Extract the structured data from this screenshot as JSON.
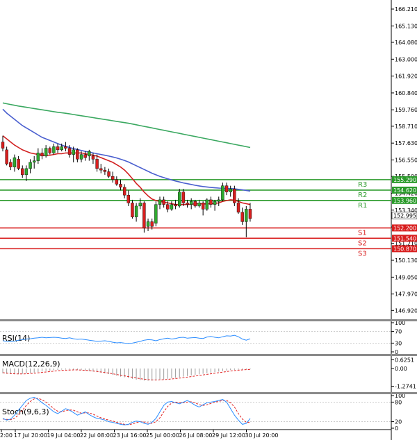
{
  "chart_data": {
    "type": "candlestick",
    "main": {
      "ylim": [
        146.4,
        166.7
      ],
      "price_ticks": [
        "166.210",
        "165.130",
        "164.080",
        "163.000",
        "161.920",
        "160.840",
        "159.760",
        "158.710",
        "157.630",
        "156.550",
        "155.500",
        "154.420",
        "153.340",
        "152.260",
        "151.210",
        "150.130",
        "149.050",
        "147.970",
        "146.920"
      ],
      "x_labels": [
        "2:00",
        "17 Jul 20:00",
        "19 Jul 04:00",
        "22 Jul 08:00",
        "23 Jul 16:00",
        "25 Jul 00:00",
        "26 Jul 08:00",
        "29 Jul 12:00",
        "30 Jul 20:00"
      ],
      "candles": [
        {
          "o": 157.7,
          "h": 158.1,
          "l": 157.1,
          "c": 157.3
        },
        {
          "o": 157.2,
          "h": 157.4,
          "l": 156.2,
          "c": 156.3
        },
        {
          "o": 156.4,
          "h": 156.6,
          "l": 155.9,
          "c": 156.1
        },
        {
          "o": 156.1,
          "h": 156.9,
          "l": 155.8,
          "c": 156.7
        },
        {
          "o": 156.6,
          "h": 156.8,
          "l": 155.9,
          "c": 156.0
        },
        {
          "o": 156.0,
          "h": 156.2,
          "l": 155.4,
          "c": 155.6
        },
        {
          "o": 155.6,
          "h": 156.2,
          "l": 155.2,
          "c": 156.0
        },
        {
          "o": 156.0,
          "h": 156.6,
          "l": 155.7,
          "c": 156.4
        },
        {
          "o": 156.4,
          "h": 156.8,
          "l": 156.0,
          "c": 156.5
        },
        {
          "o": 156.5,
          "h": 157.3,
          "l": 156.3,
          "c": 157.0
        },
        {
          "o": 157.0,
          "h": 157.3,
          "l": 156.6,
          "c": 156.8
        },
        {
          "o": 156.8,
          "h": 157.5,
          "l": 156.7,
          "c": 157.3
        },
        {
          "o": 157.3,
          "h": 157.4,
          "l": 156.9,
          "c": 157.0
        },
        {
          "o": 157.0,
          "h": 157.6,
          "l": 156.9,
          "c": 157.4
        },
        {
          "o": 157.4,
          "h": 157.6,
          "l": 157.0,
          "c": 157.2
        },
        {
          "o": 157.2,
          "h": 157.6,
          "l": 157.1,
          "c": 157.4
        },
        {
          "o": 157.4,
          "h": 157.7,
          "l": 157.1,
          "c": 157.3
        },
        {
          "o": 157.3,
          "h": 157.5,
          "l": 156.7,
          "c": 156.9
        },
        {
          "o": 156.9,
          "h": 157.4,
          "l": 156.4,
          "c": 157.2
        },
        {
          "o": 157.2,
          "h": 157.3,
          "l": 156.4,
          "c": 156.6
        },
        {
          "o": 156.6,
          "h": 157.1,
          "l": 156.4,
          "c": 156.9
        },
        {
          "o": 156.9,
          "h": 157.1,
          "l": 156.5,
          "c": 156.7
        },
        {
          "o": 156.8,
          "h": 157.2,
          "l": 156.5,
          "c": 157.1
        },
        {
          "o": 156.8,
          "h": 157.0,
          "l": 156.3,
          "c": 156.6
        },
        {
          "o": 156.6,
          "h": 156.9,
          "l": 155.8,
          "c": 156.0
        },
        {
          "o": 156.0,
          "h": 156.3,
          "l": 155.7,
          "c": 155.9
        },
        {
          "o": 155.9,
          "h": 156.1,
          "l": 155.6,
          "c": 155.8
        },
        {
          "o": 155.8,
          "h": 156.0,
          "l": 155.4,
          "c": 155.5
        },
        {
          "o": 155.5,
          "h": 155.8,
          "l": 155.1,
          "c": 155.3
        },
        {
          "o": 155.3,
          "h": 155.5,
          "l": 154.9,
          "c": 155.0
        },
        {
          "o": 155.0,
          "h": 155.3,
          "l": 154.6,
          "c": 154.8
        },
        {
          "o": 154.8,
          "h": 155.0,
          "l": 154.1,
          "c": 154.3
        },
        {
          "o": 154.3,
          "h": 154.6,
          "l": 153.6,
          "c": 153.8
        },
        {
          "o": 153.8,
          "h": 154.0,
          "l": 152.8,
          "c": 152.9
        },
        {
          "o": 152.9,
          "h": 153.8,
          "l": 152.6,
          "c": 153.6
        },
        {
          "o": 153.6,
          "h": 154.1,
          "l": 153.4,
          "c": 153.8
        },
        {
          "o": 153.8,
          "h": 153.9,
          "l": 151.9,
          "c": 152.2
        },
        {
          "o": 152.3,
          "h": 152.8,
          "l": 152.0,
          "c": 152.6
        },
        {
          "o": 152.6,
          "h": 152.8,
          "l": 152.1,
          "c": 152.3
        },
        {
          "o": 152.5,
          "h": 153.9,
          "l": 152.3,
          "c": 153.7
        },
        {
          "o": 153.7,
          "h": 154.2,
          "l": 153.4,
          "c": 154.0
        },
        {
          "o": 154.0,
          "h": 154.2,
          "l": 153.5,
          "c": 153.7
        },
        {
          "o": 153.7,
          "h": 153.9,
          "l": 153.2,
          "c": 153.4
        },
        {
          "o": 153.4,
          "h": 153.9,
          "l": 153.3,
          "c": 153.7
        },
        {
          "o": 153.7,
          "h": 154.0,
          "l": 153.4,
          "c": 153.6
        },
        {
          "o": 153.6,
          "h": 154.7,
          "l": 153.5,
          "c": 154.5
        },
        {
          "o": 154.5,
          "h": 154.7,
          "l": 153.6,
          "c": 153.8
        },
        {
          "o": 153.8,
          "h": 154.0,
          "l": 153.5,
          "c": 153.7
        },
        {
          "o": 153.7,
          "h": 154.1,
          "l": 153.4,
          "c": 153.9
        },
        {
          "o": 153.9,
          "h": 154.0,
          "l": 153.5,
          "c": 153.6
        },
        {
          "o": 153.6,
          "h": 154.0,
          "l": 153.5,
          "c": 153.8
        },
        {
          "o": 153.8,
          "h": 153.9,
          "l": 153.0,
          "c": 153.4
        },
        {
          "o": 153.4,
          "h": 154.1,
          "l": 153.3,
          "c": 154.0
        },
        {
          "o": 154.0,
          "h": 154.2,
          "l": 153.5,
          "c": 153.7
        },
        {
          "o": 153.7,
          "h": 154.0,
          "l": 153.3,
          "c": 153.9
        },
        {
          "o": 153.9,
          "h": 154.2,
          "l": 153.6,
          "c": 154.0
        },
        {
          "o": 154.0,
          "h": 155.1,
          "l": 153.9,
          "c": 154.9
        },
        {
          "o": 154.9,
          "h": 155.1,
          "l": 154.3,
          "c": 154.5
        },
        {
          "o": 154.5,
          "h": 154.9,
          "l": 154.2,
          "c": 154.7
        },
        {
          "o": 154.7,
          "h": 154.9,
          "l": 153.6,
          "c": 153.8
        },
        {
          "o": 153.8,
          "h": 154.1,
          "l": 153.1,
          "c": 153.2
        },
        {
          "o": 153.2,
          "h": 153.5,
          "l": 152.4,
          "c": 152.6
        },
        {
          "o": 152.6,
          "h": 153.6,
          "l": 151.6,
          "c": 153.4
        },
        {
          "o": 153.4,
          "h": 153.8,
          "l": 152.6,
          "c": 152.8
        }
      ],
      "ma_series": [
        {
          "color": "#d22020",
          "values": [
            158.1,
            157.9,
            157.7,
            157.5,
            157.35,
            157.2,
            157.1,
            157.0,
            156.95,
            156.9,
            156.85,
            156.85,
            156.85,
            156.9,
            156.95,
            156.95,
            157.0,
            157.0,
            157.0,
            157.0,
            157.0,
            156.95,
            156.9,
            156.85,
            156.8,
            156.7,
            156.6,
            156.5,
            156.4,
            156.25,
            156.1,
            155.9,
            155.65,
            155.35,
            155.05,
            154.8,
            154.5,
            154.25,
            154.05,
            153.95,
            153.9,
            153.85,
            153.8,
            153.75,
            153.7,
            153.7,
            153.7,
            153.7,
            153.72,
            153.74,
            153.75,
            153.74,
            153.74,
            153.75,
            153.77,
            153.8,
            153.9,
            153.95,
            154.0,
            153.98,
            153.9,
            153.8,
            153.75,
            153.7
          ]
        },
        {
          "color": "#4a5fcf",
          "values": [
            159.8,
            159.55,
            159.35,
            159.15,
            158.95,
            158.75,
            158.6,
            158.45,
            158.3,
            158.15,
            158.0,
            157.9,
            157.8,
            157.7,
            157.6,
            157.5,
            157.42,
            157.35,
            157.28,
            157.22,
            157.16,
            157.1,
            157.05,
            157.0,
            156.95,
            156.9,
            156.85,
            156.8,
            156.74,
            156.68,
            156.6,
            156.52,
            156.42,
            156.3,
            156.18,
            156.06,
            155.94,
            155.82,
            155.7,
            155.6,
            155.5,
            155.42,
            155.34,
            155.27,
            155.2,
            155.14,
            155.08,
            155.03,
            154.98,
            154.93,
            154.89,
            154.85,
            154.82,
            154.79,
            154.77,
            154.75,
            154.74,
            154.73,
            154.72,
            154.7,
            154.67,
            154.64,
            154.6,
            154.56
          ]
        },
        {
          "color": "#3aa860",
          "values": [
            160.2,
            160.15,
            160.1,
            160.05,
            160.0,
            159.96,
            159.92,
            159.88,
            159.84,
            159.8,
            159.76,
            159.72,
            159.68,
            159.64,
            159.6,
            159.57,
            159.54,
            159.5,
            159.46,
            159.42,
            159.38,
            159.34,
            159.3,
            159.26,
            159.22,
            159.18,
            159.14,
            159.1,
            159.06,
            159.02,
            158.98,
            158.94,
            158.9,
            158.85,
            158.8,
            158.75,
            158.7,
            158.65,
            158.6,
            158.55,
            158.5,
            158.45,
            158.4,
            158.35,
            158.3,
            158.25,
            158.2,
            158.15,
            158.1,
            158.05,
            158.0,
            157.95,
            157.9,
            157.85,
            157.8,
            157.75,
            157.7,
            157.65,
            157.6,
            157.55,
            157.5,
            157.45,
            157.4,
            157.35
          ]
        }
      ],
      "levels": [
        {
          "name": "R3",
          "price": 155.29,
          "label": "155.290",
          "color": "#2a9a2a"
        },
        {
          "name": "R2",
          "price": 154.62,
          "label": "154.620",
          "color": "#2a9a2a"
        },
        {
          "name": "R1",
          "price": 153.96,
          "label": "153.960",
          "color": "#2a9a2a"
        },
        {
          "name": "S1",
          "price": 152.2,
          "label": "152.200",
          "color": "#d81e1e"
        },
        {
          "name": "S2",
          "price": 151.54,
          "label": "151.540",
          "color": "#d81e1e"
        },
        {
          "name": "S3",
          "price": 150.87,
          "label": "150.870",
          "color": "#d81e1e"
        }
      ],
      "current": {
        "price": 152.995,
        "label": "152.995"
      }
    },
    "rsi": {
      "title": "RSI(14)",
      "ylim": [
        0,
        100
      ],
      "ticks": [
        "100",
        "70",
        "30",
        "0"
      ],
      "levels": [
        30,
        70
      ],
      "values": [
        38,
        36,
        35,
        37,
        40,
        42,
        44,
        45,
        47,
        48,
        50,
        48,
        49,
        50,
        49,
        47,
        46,
        48,
        45,
        43,
        44,
        42,
        40,
        38,
        36,
        37,
        38,
        36,
        33,
        31,
        32,
        30,
        29,
        30,
        33,
        36,
        40,
        42,
        41,
        38,
        42,
        45,
        47,
        44,
        46,
        49,
        50,
        47,
        48,
        49,
        47,
        46,
        51,
        53,
        50,
        48,
        52,
        55,
        54,
        57,
        52,
        44,
        40,
        45
      ]
    },
    "macd": {
      "title": "MACD(12,26,9)",
      "ylim": [
        -1.5,
        0.75
      ],
      "ticks": [
        "0.6251",
        "0.00",
        "-1.2741"
      ],
      "histogram": [
        -0.35,
        -0.38,
        -0.4,
        -0.41,
        -0.4,
        -0.38,
        -0.35,
        -0.32,
        -0.29,
        -0.26,
        -0.22,
        -0.18,
        -0.15,
        -0.12,
        -0.1,
        -0.08,
        -0.07,
        -0.07,
        -0.08,
        -0.1,
        -0.12,
        -0.15,
        -0.18,
        -0.22,
        -0.26,
        -0.3,
        -0.35,
        -0.4,
        -0.46,
        -0.52,
        -0.58,
        -0.63,
        -0.68,
        -0.74,
        -0.8,
        -0.84,
        -0.87,
        -0.88,
        -0.88,
        -0.86,
        -0.82,
        -0.78,
        -0.74,
        -0.7,
        -0.66,
        -0.62,
        -0.58,
        -0.54,
        -0.5,
        -0.46,
        -0.42,
        -0.38,
        -0.34,
        -0.3,
        -0.26,
        -0.22,
        -0.18,
        -0.14,
        -0.11,
        -0.09,
        -0.08,
        -0.07,
        -0.06,
        -0.05
      ],
      "signal": [
        -0.3,
        -0.33,
        -0.36,
        -0.38,
        -0.39,
        -0.39,
        -0.38,
        -0.36,
        -0.34,
        -0.31,
        -0.28,
        -0.25,
        -0.22,
        -0.19,
        -0.16,
        -0.14,
        -0.12,
        -0.11,
        -0.1,
        -0.1,
        -0.11,
        -0.13,
        -0.15,
        -0.18,
        -0.21,
        -0.25,
        -0.29,
        -0.33,
        -0.38,
        -0.43,
        -0.48,
        -0.53,
        -0.58,
        -0.63,
        -0.68,
        -0.73,
        -0.77,
        -0.8,
        -0.82,
        -0.83,
        -0.82,
        -0.8,
        -0.78,
        -0.75,
        -0.72,
        -0.69,
        -0.66,
        -0.62,
        -0.58,
        -0.54,
        -0.5,
        -0.46,
        -0.42,
        -0.38,
        -0.34,
        -0.3,
        -0.26,
        -0.22,
        -0.18,
        -0.15,
        -0.12,
        -0.1,
        -0.08,
        -0.07
      ]
    },
    "stoch": {
      "title": "Stoch(9,6,3)",
      "ylim": [
        0,
        100
      ],
      "ticks": [
        "100",
        "80",
        "20",
        "0"
      ],
      "levels": [
        20,
        80
      ],
      "k": [
        30,
        25,
        28,
        40,
        55,
        70,
        85,
        92,
        95,
        88,
        78,
        70,
        60,
        50,
        45,
        52,
        60,
        55,
        48,
        40,
        45,
        50,
        42,
        35,
        30,
        28,
        25,
        20,
        18,
        15,
        12,
        10,
        12,
        18,
        22,
        20,
        15,
        12,
        18,
        30,
        50,
        70,
        80,
        82,
        78,
        75,
        80,
        85,
        78,
        70,
        65,
        72,
        78,
        80,
        82,
        85,
        88,
        80,
        60,
        40,
        25,
        12,
        15,
        30
      ],
      "d": [
        28,
        27,
        26,
        31,
        40,
        55,
        70,
        82,
        90,
        92,
        87,
        80,
        70,
        60,
        52,
        50,
        54,
        56,
        55,
        50,
        46,
        47,
        47,
        43,
        37,
        32,
        28,
        25,
        22,
        18,
        15,
        12,
        11,
        13,
        17,
        20,
        19,
        16,
        15,
        20,
        32,
        50,
        67,
        77,
        80,
        79,
        78,
        80,
        81,
        78,
        72,
        70,
        72,
        76,
        80,
        82,
        85,
        85,
        78,
        65,
        45,
        28,
        18,
        18
      ]
    }
  }
}
